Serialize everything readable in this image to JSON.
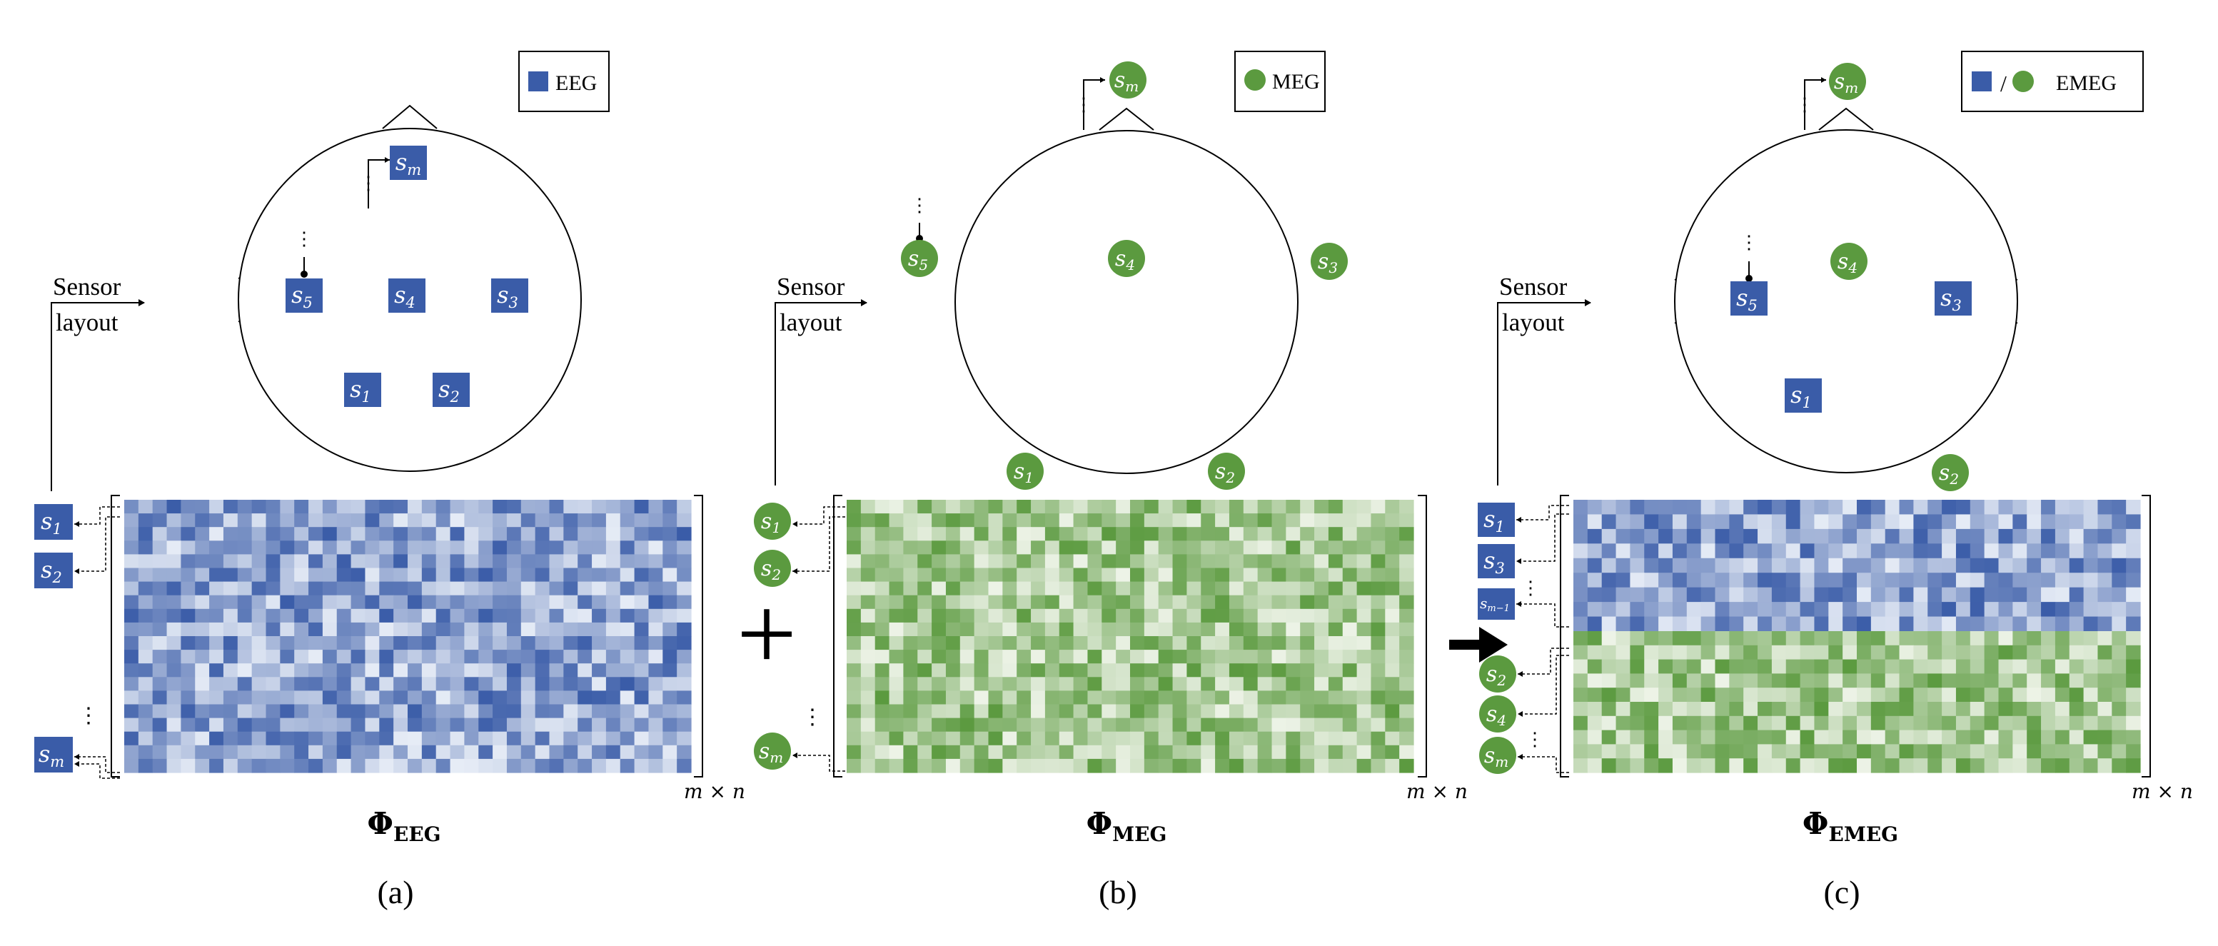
{
  "colors": {
    "eeg": "#3a5ca8",
    "meg": "#5b9a3f",
    "eeg_light": "#e6ecf6",
    "meg_light": "#edf3e7"
  },
  "legend": {
    "eeg": "EEG",
    "meg": "MEG",
    "emeg": "EMEG",
    "slash": "/"
  },
  "sensor_layout_label": {
    "line1": "Sensor",
    "line2": "layout"
  },
  "sensor_symbol": "s",
  "sensors": {
    "s1": "1",
    "s2": "2",
    "s3": "3",
    "s4": "4",
    "s5": "5",
    "sm": "m",
    "sm1": "m−1"
  },
  "ellipsis": "⋮",
  "matrix_size": "m × n",
  "phi": {
    "symbol": "Φ",
    "eeg_sub": "EEG",
    "meg_sub": "MEG",
    "emeg_sub": "EMEG"
  },
  "operators": {
    "plus": "+"
  },
  "panel_labels": {
    "a": "(a)",
    "b": "(b)",
    "c": "(c)"
  }
}
